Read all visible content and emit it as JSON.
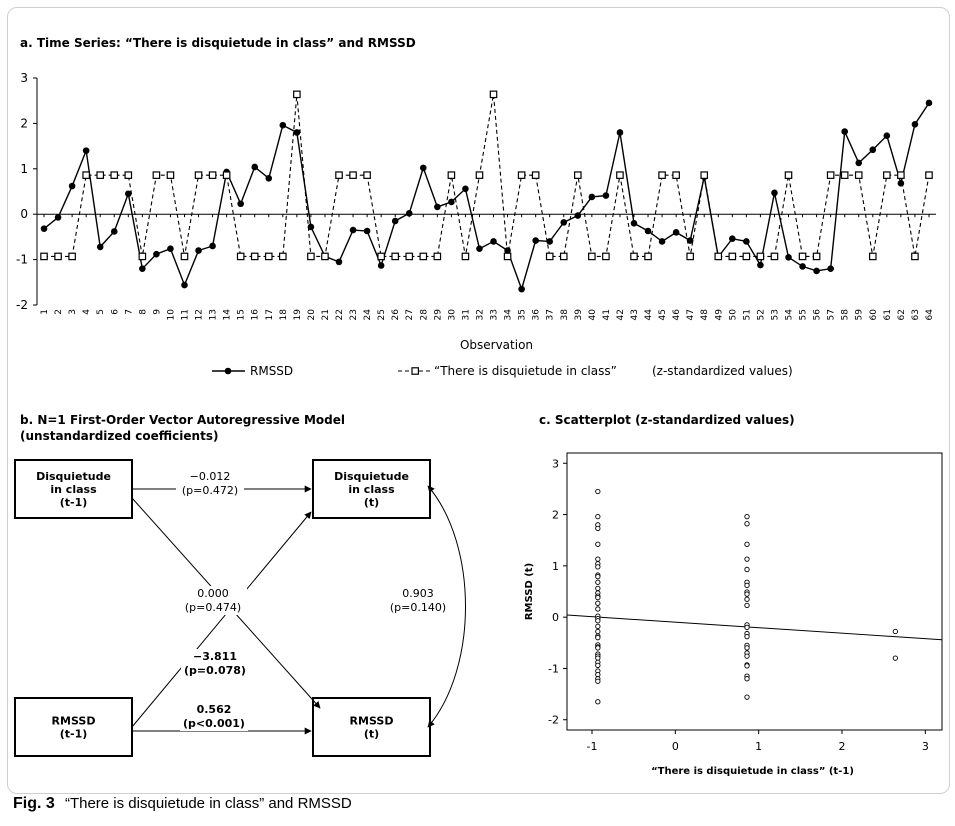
{
  "caption": {
    "label": "Fig. 3",
    "text": "“There is disquietude in class” and RMSSD"
  },
  "chart_data": [
    {
      "type": "line",
      "title": "a. Time Series: “There is disquietude in class” and RMSSD",
      "xlabel": "Observation",
      "ylabel": "",
      "ylim": [
        -2,
        3
      ],
      "yticks": [
        -2,
        -1,
        0,
        1,
        2,
        3
      ],
      "x": [
        1,
        2,
        3,
        4,
        5,
        6,
        7,
        8,
        9,
        10,
        11,
        12,
        13,
        14,
        15,
        16,
        17,
        18,
        19,
        20,
        21,
        22,
        23,
        24,
        25,
        26,
        27,
        28,
        29,
        30,
        31,
        32,
        33,
        34,
        35,
        36,
        37,
        38,
        39,
        40,
        41,
        42,
        43,
        44,
        45,
        46,
        47,
        48,
        49,
        50,
        51,
        52,
        53,
        54,
        55,
        56,
        57,
        58,
        59,
        60,
        61,
        62,
        63,
        64
      ],
      "series": [
        {
          "name": "RMSSD",
          "marker": "filled-circle",
          "style": "solid",
          "values": [
            -0.32,
            -0.07,
            0.62,
            1.4,
            -0.72,
            -0.38,
            0.45,
            -1.2,
            -0.88,
            -0.76,
            -1.56,
            -0.8,
            -0.7,
            0.93,
            0.23,
            1.04,
            0.79,
            1.96,
            1.8,
            -0.28,
            -0.93,
            -1.05,
            -0.35,
            -0.37,
            -1.13,
            -0.15,
            0.02,
            1.02,
            0.16,
            0.27,
            0.56,
            -0.76,
            -0.6,
            -0.8,
            -1.65,
            -0.58,
            -0.6,
            -0.18,
            -0.03,
            0.38,
            0.41,
            1.8,
            -0.2,
            -0.37,
            -0.6,
            -0.4,
            -0.58,
            0.82,
            -0.94,
            -0.54,
            -0.6,
            -1.12,
            0.47,
            -0.95,
            -1.15,
            -1.25,
            -1.2,
            1.82,
            1.13,
            1.42,
            1.73,
            0.68,
            1.98,
            2.45
          ]
        },
        {
          "name": "“There is disquietude in class”",
          "marker": "open-square",
          "style": "dashed",
          "values": [
            -0.93,
            -0.93,
            -0.93,
            0.86,
            0.86,
            0.86,
            0.86,
            -0.93,
            0.86,
            0.86,
            -0.93,
            0.86,
            0.86,
            0.86,
            -0.93,
            -0.93,
            -0.93,
            -0.93,
            2.64,
            -0.93,
            -0.93,
            0.86,
            0.86,
            0.86,
            -0.93,
            -0.93,
            -0.93,
            -0.93,
            -0.93,
            0.86,
            -0.93,
            0.86,
            2.64,
            -0.93,
            0.86,
            0.86,
            -0.93,
            -0.93,
            0.86,
            -0.93,
            -0.93,
            0.86,
            -0.93,
            -0.93,
            0.86,
            0.86,
            -0.93,
            0.86,
            -0.93,
            -0.93,
            -0.93,
            -0.93,
            -0.93,
            0.86,
            -0.93,
            -0.93,
            0.86,
            0.86,
            0.86,
            -0.93,
            0.86,
            0.86,
            -0.93,
            0.86
          ]
        }
      ],
      "legend_note": "(z-standardized values)",
      "legend": "bottom"
    },
    {
      "type": "diagram",
      "title": "b. N=1 First-Order Vector Autoregressive Model",
      "subtitle": "(unstandardized coefficients)",
      "nodes": [
        {
          "id": "dis_t1",
          "lines": [
            "Disquietude",
            "in class",
            "(t-1)"
          ]
        },
        {
          "id": "dis_t",
          "lines": [
            "Disquietude",
            "in class",
            "(t)"
          ]
        },
        {
          "id": "rm_t1",
          "lines": [
            "RMSSD",
            "(t-1)"
          ]
        },
        {
          "id": "rm_t",
          "lines": [
            "RMSSD",
            "(t)"
          ]
        }
      ],
      "edges": [
        {
          "from": "dis_t1",
          "to": "dis_t",
          "coef": "−0.012",
          "p": "(p=0.472)",
          "bold": false
        },
        {
          "from": "rm_t1",
          "to": "dis_t",
          "coef": "0.000",
          "p": "(p=0.474)",
          "bold": false
        },
        {
          "from": "dis_t1",
          "to": "rm_t",
          "coef": "−3.811",
          "p": "(p=0.078)",
          "bold": true
        },
        {
          "from": "rm_t1",
          "to": "rm_t",
          "coef": "0.562",
          "p": "(p<0.001)",
          "bold": true
        },
        {
          "from": "dis_t",
          "to": "rm_t",
          "coef": "0.903",
          "p": "(p=0.140)",
          "bold": false,
          "bidirectional": true
        }
      ]
    },
    {
      "type": "scatter",
      "title": "c. Scatterplot (z-standardized values)",
      "xlabel": "“There is disquietude in class” (t-1)",
      "ylabel": "RMSSD (t)",
      "xlim": [
        -1.3,
        3.2
      ],
      "ylim": [
        -2.2,
        3.2
      ],
      "xticks": [
        -1,
        0,
        1,
        2,
        3
      ],
      "yticks": [
        -2,
        -1,
        0,
        1,
        2,
        3
      ],
      "regression": {
        "intercept": -0.098,
        "slope": -0.107
      },
      "points": [
        [
          -0.93,
          2.45
        ],
        [
          -0.93,
          1.96
        ],
        [
          -0.93,
          1.8
        ],
        [
          -0.93,
          1.73
        ],
        [
          -0.93,
          1.42
        ],
        [
          -0.93,
          1.13
        ],
        [
          -0.93,
          1.04
        ],
        [
          -0.93,
          0.98
        ],
        [
          -0.93,
          0.82
        ],
        [
          -0.93,
          0.79
        ],
        [
          -0.93,
          0.68
        ],
        [
          -0.93,
          0.56
        ],
        [
          -0.93,
          0.47
        ],
        [
          -0.93,
          0.41
        ],
        [
          -0.93,
          0.38
        ],
        [
          -0.93,
          0.27
        ],
        [
          -0.93,
          0.16
        ],
        [
          -0.93,
          0.02
        ],
        [
          -0.93,
          -0.03
        ],
        [
          -0.93,
          -0.07
        ],
        [
          -0.93,
          -0.18
        ],
        [
          -0.93,
          -0.28
        ],
        [
          -0.93,
          -0.37
        ],
        [
          -0.93,
          -0.4
        ],
        [
          -0.93,
          -0.54
        ],
        [
          -0.93,
          -0.58
        ],
        [
          -0.93,
          -0.6
        ],
        [
          -0.93,
          -0.72
        ],
        [
          -0.93,
          -0.76
        ],
        [
          -0.93,
          -0.8
        ],
        [
          -0.93,
          -0.88
        ],
        [
          -0.93,
          -0.94
        ],
        [
          -0.93,
          -1.05
        ],
        [
          -0.93,
          -1.12
        ],
        [
          -0.93,
          -1.2
        ],
        [
          -0.93,
          -1.25
        ],
        [
          -0.93,
          -1.65
        ],
        [
          0.86,
          1.96
        ],
        [
          0.86,
          1.82
        ],
        [
          0.86,
          1.42
        ],
        [
          0.86,
          1.13
        ],
        [
          0.86,
          0.93
        ],
        [
          0.86,
          0.68
        ],
        [
          0.86,
          0.62
        ],
        [
          0.86,
          0.49
        ],
        [
          0.86,
          0.45
        ],
        [
          0.86,
          0.35
        ],
        [
          0.86,
          0.23
        ],
        [
          0.86,
          -0.15
        ],
        [
          0.86,
          -0.2
        ],
        [
          0.86,
          -0.32
        ],
        [
          0.86,
          -0.38
        ],
        [
          0.86,
          -0.55
        ],
        [
          0.86,
          -0.6
        ],
        [
          0.86,
          -0.7
        ],
        [
          0.86,
          -0.76
        ],
        [
          0.86,
          -0.93
        ],
        [
          0.86,
          -0.95
        ],
        [
          0.86,
          -1.15
        ],
        [
          0.86,
          -1.2
        ],
        [
          0.86,
          -1.56
        ],
        [
          2.64,
          -0.28
        ],
        [
          2.64,
          -0.8
        ]
      ]
    }
  ]
}
